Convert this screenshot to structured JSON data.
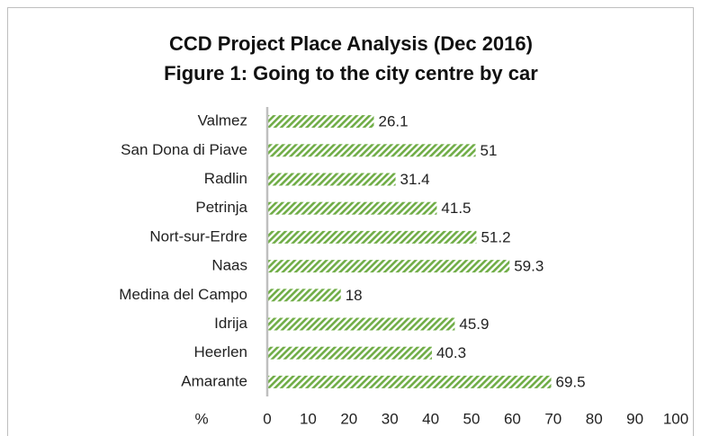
{
  "chart_data": {
    "type": "hbar",
    "title": "CCD Project Place Analysis (Dec 2016)",
    "subtitle": "Figure 1: Going to the city centre by car",
    "xlabel": "%",
    "categories": [
      "Valmez",
      "San Dona di Piave",
      "Radlin",
      "Petrinja",
      "Nort-sur-Erdre",
      "Naas",
      "Medina del Campo",
      "Idrija",
      "Heerlen",
      "Amarante"
    ],
    "values": [
      26.1,
      51,
      31.4,
      41.5,
      51.2,
      59.3,
      18,
      45.9,
      40.3,
      69.5
    ],
    "color": "#70ad47",
    "xlim": [
      0,
      100
    ],
    "xticks": [
      0,
      10,
      20,
      30,
      40,
      50,
      60,
      70,
      80,
      90,
      100
    ]
  }
}
